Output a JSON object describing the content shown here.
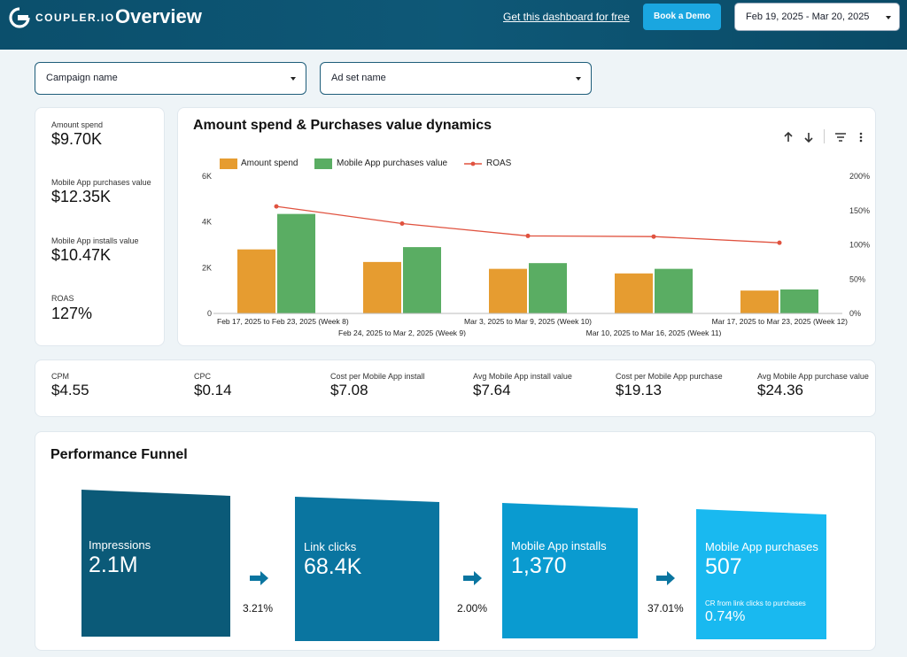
{
  "header": {
    "logo_text": "COUPLER.IO",
    "title": "Overview",
    "cta_link": "Get this dashboard for free",
    "demo_button": "Book a Demo",
    "date_range": "Feb 19, 2025 - Mar 20, 2025"
  },
  "filters": {
    "campaign": "Campaign name",
    "adset": "Ad set name"
  },
  "kpis": [
    {
      "label": "Amount spend",
      "value": "$9.70K"
    },
    {
      "label": "Mobile App purchases value",
      "value": "$12.35K"
    },
    {
      "label": "Mobile App installs value",
      "value": "$10.47K"
    },
    {
      "label": "ROAS",
      "value": "127%"
    }
  ],
  "chart_card": {
    "title": "Amount spend & Purchases value dynamics",
    "legend": [
      "Amount spend",
      "Mobile App purchases value",
      "ROAS"
    ]
  },
  "chart_data": {
    "type": "bar",
    "title": "Amount spend & Purchases value dynamics",
    "categories": [
      "Feb 17, 2025 to Feb 23, 2025 (Week 8)",
      "Feb 24, 2025 to Mar 2, 2025 (Week 9)",
      "Mar 3, 2025 to Mar 9, 2025 (Week 10)",
      "Mar 10, 2025 to Mar 16, 2025 (Week 11)",
      "Mar 17, 2025 to Mar 23, 2025 (Week 12)"
    ],
    "series": [
      {
        "name": "Amount spend",
        "type": "bar",
        "axis": "left",
        "values": [
          2800,
          2250,
          1950,
          1750,
          1000
        ]
      },
      {
        "name": "Mobile App purchases value",
        "type": "bar",
        "axis": "left",
        "values": [
          4350,
          2900,
          2200,
          1950,
          1050
        ]
      },
      {
        "name": "ROAS",
        "type": "line",
        "axis": "right",
        "values": [
          156,
          131,
          113,
          112,
          103
        ]
      }
    ],
    "left_axis": {
      "ticks": [
        "0",
        "2K",
        "4K",
        "6K"
      ],
      "ylim": [
        0,
        6000
      ]
    },
    "right_axis": {
      "ticks": [
        "0%",
        "50%",
        "100%",
        "150%",
        "200%"
      ],
      "ylim": [
        0,
        200
      ]
    },
    "colors": {
      "Amount spend": "#e69c30",
      "Mobile App purchases value": "#5aad63",
      "ROAS": "#e0523f"
    }
  },
  "metrics": [
    {
      "label": "CPM",
      "value": "$4.55"
    },
    {
      "label": "CPC",
      "value": "$0.14"
    },
    {
      "label": "Cost per Mobile App install",
      "value": "$7.08"
    },
    {
      "label": "Avg Mobile App install value",
      "value": "$7.64"
    },
    {
      "label": "Cost per Mobile App purchase",
      "value": "$19.13"
    },
    {
      "label": "Avg Mobile App purchase value",
      "value": "$24.36"
    }
  ],
  "funnel": {
    "title": "Performance Funnel",
    "stages": [
      {
        "label": "Impressions",
        "value": "2.1M",
        "color": "#0b5a78"
      },
      {
        "label": "Link clicks",
        "value": "68.4K",
        "color": "#0a75a0"
      },
      {
        "label": "Mobile App installs",
        "value": "1,370",
        "color": "#0a9bd0"
      },
      {
        "label": "Mobile App purchases",
        "value": "507",
        "color": "#19b9f0"
      }
    ],
    "rates": [
      "3.21%",
      "2.00%",
      "37.01%"
    ],
    "cr_label": "CR from link clicks to purchases",
    "cr_value": "0.74%",
    "arrow_color": "#0a75a0"
  }
}
